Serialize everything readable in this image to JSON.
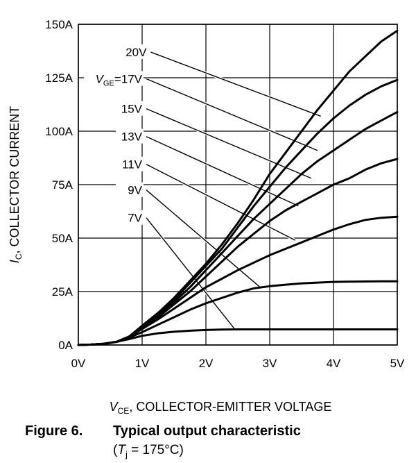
{
  "caption": {
    "figure_number": "Figure 6.",
    "title": "Typical output characteristic",
    "condition_symbol": "T",
    "condition_subscript": "j",
    "condition_value": " = 175°C)"
  },
  "chart_data": {
    "type": "line",
    "xlabel_symbol": "V",
    "xlabel_subscript": "CE",
    "xlabel": ", COLLECTOR-EMITTER VOLTAGE",
    "ylabel_symbol": "I",
    "ylabel_subscript": "C",
    "ylabel": ", COLLECTOR CURRENT",
    "xlim": [
      0,
      5
    ],
    "ylim": [
      0,
      150
    ],
    "grid": true,
    "x_ticks": [
      {
        "value": 0,
        "label": "0V"
      },
      {
        "value": 1,
        "label": "1V"
      },
      {
        "value": 2,
        "label": "2V"
      },
      {
        "value": 3,
        "label": "3V"
      },
      {
        "value": 4,
        "label": "4V"
      },
      {
        "value": 5,
        "label": "5V"
      }
    ],
    "y_ticks": [
      {
        "value": 0,
        "label": "0A"
      },
      {
        "value": 25,
        "label": "25A"
      },
      {
        "value": 50,
        "label": "50A"
      },
      {
        "value": 75,
        "label": "75A"
      },
      {
        "value": 100,
        "label": "100A"
      },
      {
        "value": 125,
        "label": "125A"
      },
      {
        "value": 150,
        "label": "150A"
      }
    ],
    "series": [
      {
        "name": "20V",
        "label_pos": [
          1.07,
          137
        ],
        "leader_to": [
          3.8,
          107
        ],
        "x": [
          0,
          0.2,
          0.4,
          0.6,
          0.8,
          1.0,
          1.25,
          1.5,
          1.75,
          2.0,
          2.25,
          2.5,
          2.75,
          3.0,
          3.25,
          3.5,
          3.75,
          4.0,
          4.25,
          4.5,
          4.75,
          5.0
        ],
        "y": [
          0,
          0.2,
          0.6,
          1.5,
          4,
          9,
          15,
          22,
          30,
          38,
          47,
          57,
          68,
          80,
          90,
          100,
          110,
          119,
          128,
          135,
          142,
          147
        ]
      },
      {
        "name": "17V",
        "prefix": "V",
        "prefix_sub": "GE",
        "prefix_eq": "=",
        "label_pos": [
          1.0,
          124.5
        ],
        "leader_to": [
          3.75,
          91
        ],
        "x": [
          0,
          0.2,
          0.4,
          0.6,
          0.8,
          1.0,
          1.25,
          1.5,
          1.75,
          2.0,
          2.25,
          2.5,
          2.75,
          3.0,
          3.25,
          3.5,
          3.75,
          4.0,
          4.25,
          4.5,
          4.75,
          5.0
        ],
        "y": [
          0,
          0.2,
          0.6,
          1.5,
          4,
          9,
          15,
          21,
          29,
          37,
          45,
          55,
          65,
          74,
          83,
          91,
          99,
          106,
          112,
          117,
          121,
          124
        ]
      },
      {
        "name": "15V",
        "label_pos": [
          1.0,
          110.5
        ],
        "leader_to": [
          3.65,
          78
        ],
        "x": [
          0,
          0.2,
          0.4,
          0.6,
          0.8,
          1.0,
          1.25,
          1.5,
          1.75,
          2.0,
          2.25,
          2.5,
          2.75,
          3.0,
          3.25,
          3.5,
          3.75,
          4.0,
          4.25,
          4.5,
          4.75,
          5.0
        ],
        "y": [
          0,
          0.2,
          0.6,
          1.5,
          4,
          8.5,
          14,
          20,
          27,
          35,
          43,
          51,
          59,
          66,
          73,
          80,
          86,
          91,
          96,
          101,
          105,
          109
        ]
      },
      {
        "name": "13V",
        "label_pos": [
          1.0,
          97.5
        ],
        "leader_to": [
          3.45,
          65
        ],
        "x": [
          0,
          0.2,
          0.4,
          0.6,
          0.8,
          1.0,
          1.25,
          1.5,
          1.75,
          2.0,
          2.25,
          2.5,
          2.75,
          3.0,
          3.25,
          3.5,
          3.75,
          4.0,
          4.25,
          4.5,
          4.75,
          5.0
        ],
        "y": [
          0,
          0.2,
          0.6,
          1.5,
          4,
          8,
          13,
          19,
          25,
          32,
          39,
          46,
          52,
          58,
          63,
          67,
          71,
          75,
          78,
          82,
          85,
          87
        ]
      },
      {
        "name": "11V",
        "label_pos": [
          1.0,
          84.5
        ],
        "leader_to": [
          3.4,
          49
        ],
        "x": [
          0,
          0.2,
          0.4,
          0.6,
          0.8,
          1.0,
          1.25,
          1.5,
          1.75,
          2.0,
          2.25,
          2.5,
          2.75,
          3.0,
          3.25,
          3.5,
          3.75,
          4.0,
          4.25,
          4.5,
          4.75,
          5.0
        ],
        "y": [
          0,
          0.2,
          0.6,
          1.5,
          4,
          7.5,
          12,
          17,
          22,
          27,
          31,
          35,
          38.5,
          42,
          45,
          48,
          51,
          54,
          56.5,
          58.5,
          59.5,
          60
        ]
      },
      {
        "name": "9V",
        "label_pos": [
          1.0,
          72.5
        ],
        "leader_to": [
          2.85,
          27
        ],
        "x": [
          0,
          0.2,
          0.4,
          0.6,
          0.8,
          1.0,
          1.25,
          1.5,
          1.75,
          2.0,
          2.25,
          2.5,
          2.75,
          3.0,
          3.25,
          3.5,
          3.75,
          4.0,
          4.25,
          4.5,
          4.75,
          5.0
        ],
        "y": [
          0,
          0.2,
          0.6,
          1.5,
          3.5,
          6,
          9.5,
          13,
          16.5,
          19.5,
          22,
          24.5,
          26.5,
          27.5,
          28.2,
          28.8,
          29.2,
          29.5,
          29.6,
          29.7,
          29.8,
          29.8
        ]
      },
      {
        "name": "7V",
        "label_pos": [
          1.0,
          59.5
        ],
        "leader_to": [
          2.45,
          7.5
        ],
        "x": [
          0,
          0.2,
          0.4,
          0.6,
          0.8,
          1.0,
          1.25,
          1.5,
          1.75,
          2.0,
          2.25,
          2.5,
          2.75,
          3.0,
          3.25,
          3.5,
          3.75,
          4.0,
          4.25,
          4.5,
          4.75,
          5.0
        ],
        "y": [
          0,
          0.2,
          0.5,
          1.5,
          2.8,
          4.3,
          5.5,
          6.2,
          6.7,
          7.0,
          7.2,
          7.3,
          7.3,
          7.3,
          7.3,
          7.3,
          7.3,
          7.3,
          7.3,
          7.3,
          7.3,
          7.3
        ]
      }
    ]
  }
}
